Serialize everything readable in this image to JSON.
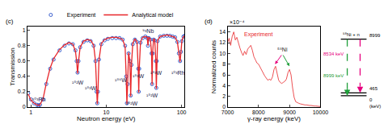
{
  "chart_data": [
    {
      "type": "scatter",
      "panel_label": "(c)",
      "x_label": "Neutron energy (eV)",
      "y_label": "Transmission",
      "log": "x",
      "grid": false,
      "legend": "top",
      "xlim": [
        0.9,
        110
      ],
      "xticks": [
        1,
        10,
        100
      ],
      "ylim": [
        0,
        1.05
      ],
      "yticks": [
        0,
        0.2,
        0.4,
        0.6,
        0.8,
        1
      ],
      "x": [
        0.92,
        1.0,
        1.1,
        1.2,
        1.26,
        1.32,
        1.45,
        1.6,
        1.8,
        2.0,
        2.4,
        2.8,
        3.2,
        3.6,
        3.9,
        4.05,
        4.16,
        4.28,
        4.5,
        5.0,
        5.6,
        6.2,
        6.8,
        7.2,
        7.45,
        7.6,
        7.75,
        8.0,
        8.6,
        9.5,
        10.5,
        12,
        13.5,
        15,
        16.5,
        17.8,
        18.4,
        18.8,
        19.2,
        19.8,
        20.6,
        21.1,
        21.6,
        22.5,
        24,
        25.6,
        26.6,
        27.0,
        27.4,
        28.5,
        30.5,
        33,
        35,
        35.8,
        36.6,
        38.5,
        40,
        40.6,
        41.2,
        42.5,
        44,
        45.6,
        46.2,
        46.8,
        48,
        52,
        58,
        64,
        70,
        76,
        82,
        88,
        92,
        95.5,
        98,
        101,
        106,
        110
      ],
      "series": [
        {
          "name": "Experiment",
          "type": "scatter",
          "marker": "open_circle",
          "color": "#3a5fcd",
          "values": [
            0.18,
            0.1,
            0.05,
            0.03,
            0.02,
            0.03,
            0.1,
            0.3,
            0.5,
            0.62,
            0.74,
            0.8,
            0.83,
            0.82,
            0.74,
            0.6,
            0.45,
            0.6,
            0.78,
            0.85,
            0.87,
            0.86,
            0.8,
            0.6,
            0.2,
            0.05,
            0.2,
            0.62,
            0.82,
            0.87,
            0.89,
            0.9,
            0.9,
            0.9,
            0.88,
            0.8,
            0.4,
            0.05,
            0.3,
            0.7,
            0.6,
            0.15,
            0.55,
            0.82,
            0.88,
            0.85,
            0.5,
            0.2,
            0.5,
            0.84,
            0.9,
            0.92,
            0.9,
            0.8,
            0.9,
            0.88,
            0.7,
            0.3,
            0.7,
            0.88,
            0.87,
            0.6,
            0.25,
            0.6,
            0.86,
            0.92,
            0.93,
            0.93,
            0.93,
            0.92,
            0.91,
            0.85,
            0.7,
            0.6,
            0.72,
            0.86,
            0.92,
            0.93
          ]
        },
        {
          "name": "Analytical model",
          "type": "line",
          "line_style": "solid",
          "color": "#e8262a",
          "values": [
            0.17,
            0.09,
            0.05,
            0.03,
            0.02,
            0.03,
            0.11,
            0.31,
            0.51,
            0.63,
            0.75,
            0.81,
            0.84,
            0.82,
            0.73,
            0.59,
            0.44,
            0.59,
            0.78,
            0.86,
            0.88,
            0.87,
            0.81,
            0.6,
            0.19,
            0.04,
            0.19,
            0.61,
            0.83,
            0.88,
            0.9,
            0.91,
            0.91,
            0.9,
            0.88,
            0.79,
            0.39,
            0.04,
            0.29,
            0.71,
            0.6,
            0.14,
            0.54,
            0.83,
            0.89,
            0.85,
            0.49,
            0.19,
            0.49,
            0.85,
            0.91,
            0.92,
            0.91,
            0.8,
            0.91,
            0.89,
            0.7,
            0.29,
            0.69,
            0.89,
            0.88,
            0.59,
            0.24,
            0.59,
            0.87,
            0.92,
            0.93,
            0.94,
            0.93,
            0.92,
            0.91,
            0.85,
            0.69,
            0.59,
            0.71,
            0.87,
            0.92,
            0.93
          ]
        }
      ],
      "annotations": [
        {
          "text": "¹⁰³Rh",
          "x": 1.3,
          "y": 0.1
        },
        {
          "text": "¹⁸²W",
          "x": 4.2,
          "y": 0.32
        },
        {
          "text": "¹⁸³W",
          "x": 6.3,
          "y": 0.25
        },
        {
          "text": "¹⁸⁶W",
          "x": 15.5,
          "y": 0.35
        },
        {
          "text": "¹⁸²W",
          "x": 22,
          "y": 0.05
        },
        {
          "text": "¹⁸³W",
          "x": 27,
          "y": 0.4
        },
        {
          "text": "⁹³Nb",
          "x": 36,
          "y": 0.99
        },
        {
          "text": "¹⁸²W",
          "x": 40.6,
          "y": 0.15
        },
        {
          "text": "¹⁸³W",
          "x": 46.2,
          "y": 0.45
        },
        {
          "text": "¹⁰³Rh",
          "x": 90,
          "y": 0.45
        }
      ]
    },
    {
      "type": "line",
      "panel_label": "(d)",
      "x_label": "γ-ray energy (keV)",
      "y_label": "Normalized counts",
      "y_scale_label": "×10⁻⁴",
      "grid": false,
      "color": "#e8262a",
      "xlim": [
        7000,
        10000
      ],
      "xticks": [
        7000,
        8000,
        9000,
        10000
      ],
      "ylim": [
        0,
        15
      ],
      "yticks": [
        0,
        2,
        4,
        6,
        8,
        10,
        12,
        14
      ],
      "x": [
        7000,
        7050,
        7100,
        7150,
        7200,
        7250,
        7300,
        7350,
        7400,
        7450,
        7500,
        7550,
        7600,
        7650,
        7700,
        7750,
        7800,
        7850,
        7900,
        7950,
        8000,
        8050,
        8100,
        8150,
        8200,
        8250,
        8300,
        8350,
        8400,
        8450,
        8500,
        8550,
        8600,
        8650,
        8700,
        8750,
        8800,
        8850,
        8900,
        8950,
        9000,
        9050,
        9100,
        9150,
        9200,
        9250,
        9300,
        9350,
        9400,
        9450,
        9500,
        9550,
        9600,
        9650,
        9700,
        9750,
        9800,
        9850,
        9900,
        9950,
        10000
      ],
      "values": [
        12.0,
        12.8,
        11.5,
        13.2,
        14.0,
        12.5,
        13.0,
        11.8,
        11.0,
        10.2,
        9.6,
        10.4,
        9.8,
        10.8,
        11.2,
        11.5,
        10.6,
        9.4,
        8.8,
        8.2,
        8.0,
        7.4,
        7.0,
        6.2,
        5.8,
        5.4,
        5.0,
        5.2,
        5.0,
        5.6,
        7.0,
        7.6,
        6.2,
        5.0,
        4.6,
        4.4,
        4.6,
        4.8,
        5.2,
        6.4,
        7.0,
        6.0,
        3.6,
        1.8,
        1.0,
        0.8,
        0.7,
        0.6,
        0.5,
        0.5,
        0.4,
        0.4,
        0.3,
        0.3,
        0.3,
        0.2,
        0.2,
        0.2,
        0.2,
        0.1,
        0.1
      ],
      "annotations": [
        {
          "text": "Experiment",
          "x": 8000,
          "y": 13.5,
          "color": "#e8262a"
        },
        {
          "text": "⁵⁸Ni",
          "x": 8770,
          "y": 10.8,
          "color": "#222222",
          "arrows": [
            {
              "x": 8534,
              "y": 8.0,
              "color": "#e6007e"
            },
            {
              "x": 8999,
              "y": 7.6,
              "color": "#1f9e3a"
            }
          ]
        }
      ]
    },
    {
      "type": "level_diagram",
      "title": "⁵⁸Ni + n",
      "unit_label": "(keV)",
      "levels": [
        8999,
        465,
        0
      ],
      "ylim": [
        -1800,
        11000
      ],
      "transitions": [
        {
          "from": 8999,
          "to": 0,
          "label": "8999 keV",
          "color": "#1f9e3a",
          "line_style": "dashed"
        },
        {
          "from": 8999,
          "to": 465,
          "label": "8534 keV",
          "color": "#e6007e",
          "line_style": "dashed"
        }
      ]
    }
  ]
}
